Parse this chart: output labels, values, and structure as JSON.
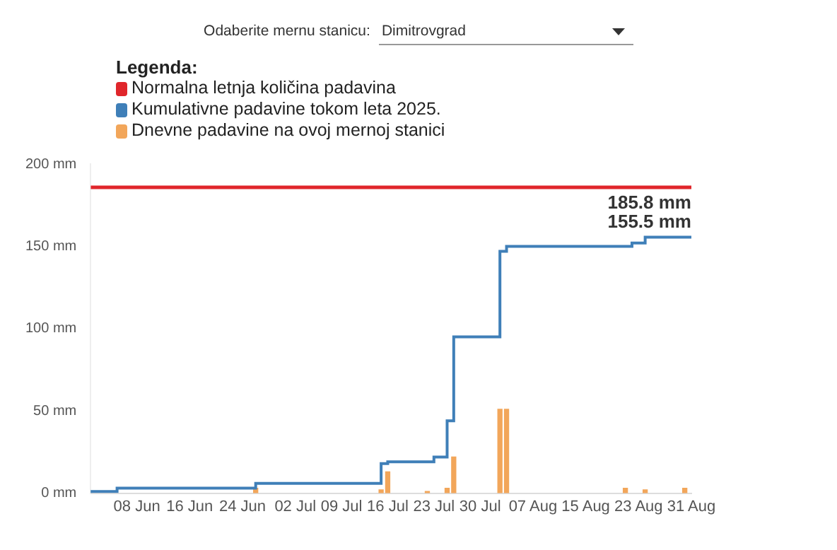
{
  "chart_data": {
    "type": "bar",
    "legend_title": "Legenda:",
    "legend": "top left",
    "annotations": [
      "Odaberite mernu stanicu:",
      "Dimitrovgrad",
      {
        "text": "185.8 mm",
        "x": "2025-08-31",
        "y": 185.8
      },
      {
        "text": "155.5 mm",
        "x": "2025-08-31",
        "y": 155.5
      }
    ],
    "series": [
      {
        "name": "Normalna letnja količina padavina",
        "type": "line",
        "color": "#e0262b",
        "x": [
          "2025-06-01",
          "2025-08-31"
        ],
        "values": [
          185.8,
          185.8
        ]
      },
      {
        "name": "Kumulativne padavine tokom leta 2025.",
        "type": "step",
        "color": "#3f7fb8",
        "x": [
          "2025-06-01",
          "2025-06-05",
          "2025-06-26",
          "2025-07-15",
          "2025-07-16",
          "2025-07-23",
          "2025-07-25",
          "2025-07-26",
          "2025-08-02",
          "2025-08-03",
          "2025-08-22",
          "2025-08-24",
          "2025-08-29",
          "2025-08-31"
        ],
        "values": [
          0,
          1,
          3,
          6,
          18,
          19,
          22,
          44,
          95,
          147,
          150,
          152,
          155.5,
          155.5
        ]
      },
      {
        "name": "Dnevne padavine na ovoj mernoj stanici",
        "color": "#f2a65a",
        "x": [
          "2025-06-26",
          "2025-07-15",
          "2025-07-16",
          "2025-07-22",
          "2025-07-25",
          "2025-07-26",
          "2025-08-02",
          "2025-08-03",
          "2025-08-21",
          "2025-08-24",
          "2025-08-30"
        ],
        "values": [
          3,
          2,
          13,
          1,
          3,
          22,
          51,
          51,
          3,
          2,
          3
        ]
      }
    ],
    "xlim": [
      "2025-06-01",
      "2025-08-31"
    ],
    "xticks": [
      {
        "value": "2025-06-08",
        "label": "08 Jun"
      },
      {
        "value": "2025-06-16",
        "label": "16 Jun"
      },
      {
        "value": "2025-06-24",
        "label": "24 Jun"
      },
      {
        "value": "2025-07-02",
        "label": "02 Jul"
      },
      {
        "value": "2025-07-09",
        "label": "09 Jul"
      },
      {
        "value": "2025-07-16",
        "label": "16 Jul"
      },
      {
        "value": "2025-07-23",
        "label": "23 Jul"
      },
      {
        "value": "2025-07-30",
        "label": "30 Jul"
      },
      {
        "value": "2025-08-07",
        "label": "07 Aug"
      },
      {
        "value": "2025-08-15",
        "label": "15 Aug"
      },
      {
        "value": "2025-08-23",
        "label": "23 Aug"
      },
      {
        "value": "2025-08-31",
        "label": "31 Aug"
      }
    ],
    "ylim": [
      0,
      200
    ],
    "yticks": [
      {
        "value": 0,
        "label": "0 mm"
      },
      {
        "value": 50,
        "label": "50 mm"
      },
      {
        "value": 100,
        "label": "100 mm"
      },
      {
        "value": 150,
        "label": "150 mm"
      },
      {
        "value": 200,
        "label": "200 mm"
      }
    ],
    "grid": false
  }
}
